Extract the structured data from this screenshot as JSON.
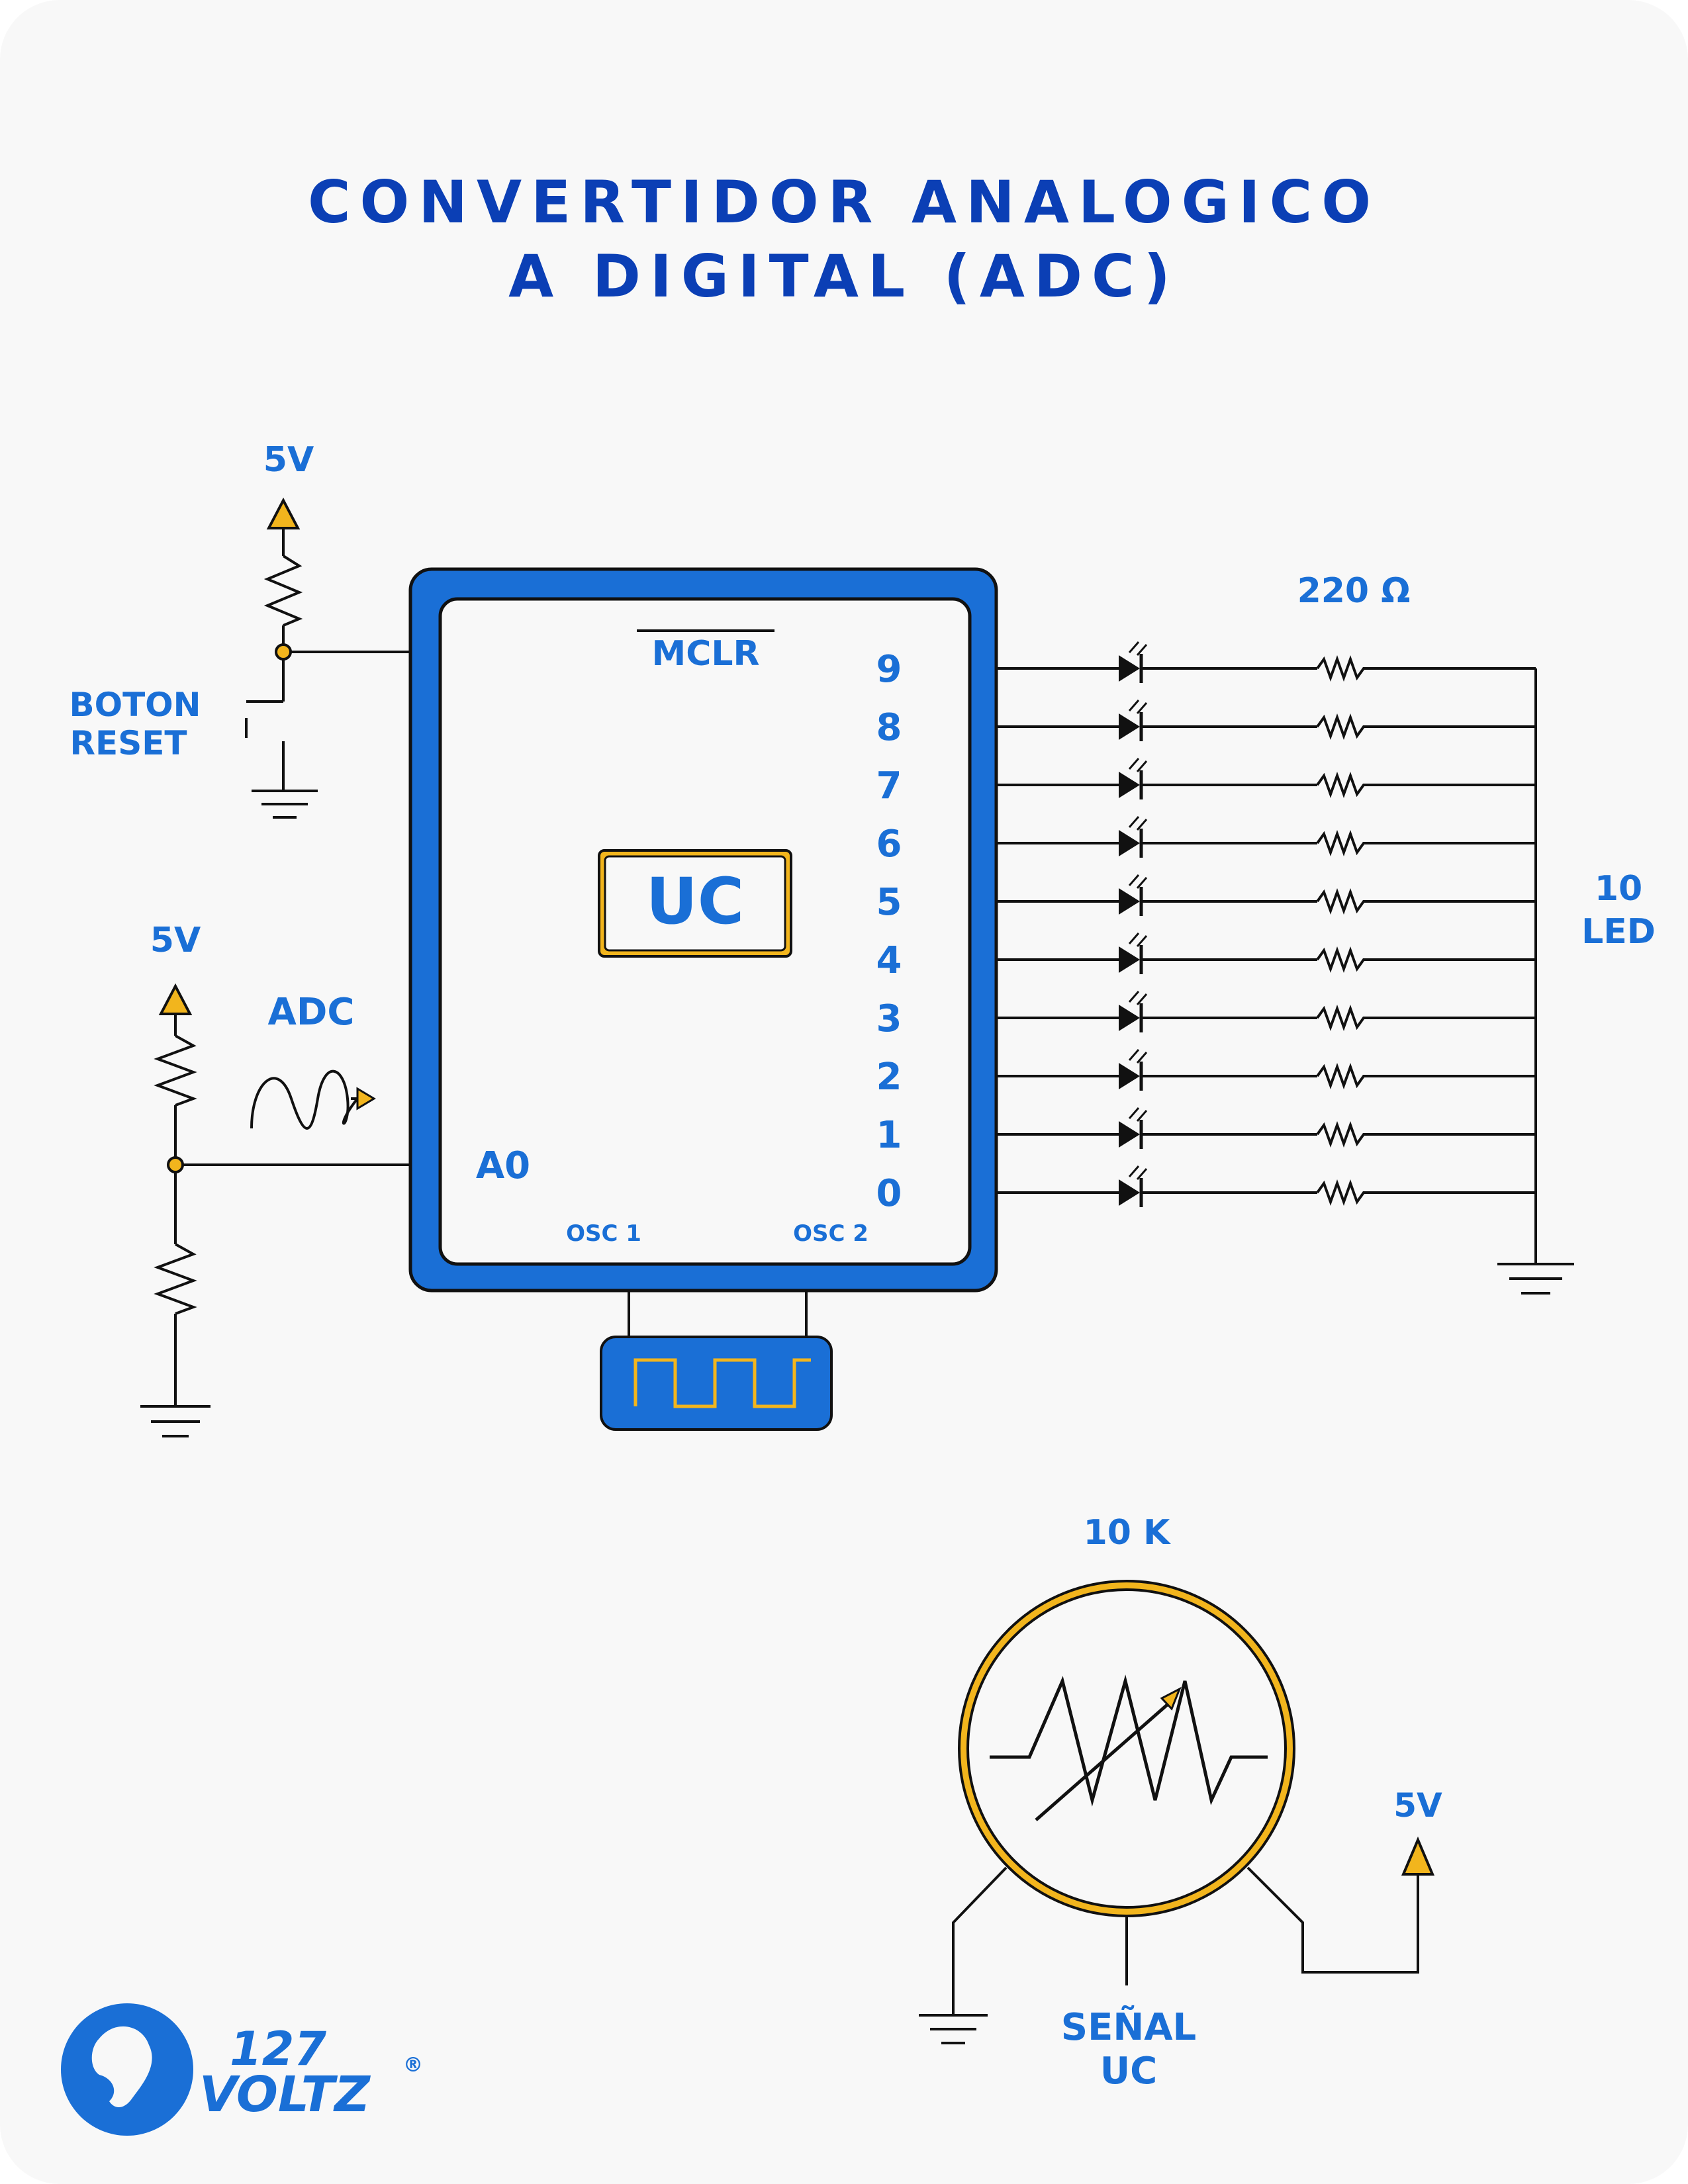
{
  "title": {
    "line1": "CONVERTIDOR ANALOGICO",
    "line2": "A DIGITAL (ADC)"
  },
  "reset": {
    "supply": "5V",
    "label_line1": "BOTON",
    "label_line2": "RESET"
  },
  "adc_input": {
    "supply": "5V",
    "label": "ADC"
  },
  "mcu": {
    "mclr_label": "MCLR",
    "core_label": "UC",
    "analog_pin": "A0",
    "osc1": "OSC 1",
    "osc2": "OSC 2",
    "output_pins": [
      "9",
      "8",
      "7",
      "6",
      "5",
      "4",
      "3",
      "2",
      "1",
      "0"
    ]
  },
  "output": {
    "resistor_value": "220 Ω",
    "led_count_line1": "10",
    "led_count_line2": "LED"
  },
  "potentiometer": {
    "value": "10 K",
    "supply": "5V",
    "signal_line1": "SEÑAL",
    "signal_line2": "UC"
  },
  "logo": {
    "number": "127",
    "name": "VOLTZ",
    "mark": "®"
  },
  "colors": {
    "title": "#0b3fb5",
    "label": "#1a6fd6",
    "chip_body": "#1a6fd6",
    "accent": "#f2b51d",
    "wire": "#111111"
  }
}
